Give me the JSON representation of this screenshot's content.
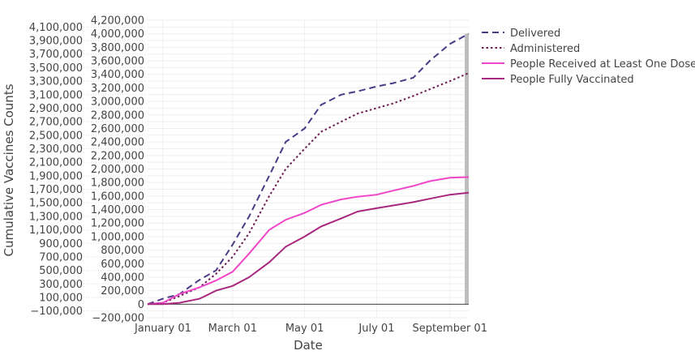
{
  "chart_data": {
    "type": "line",
    "title": "",
    "xlabel": "Date",
    "ylabel": "Cumulative Vaccines Counts",
    "ylim": [
      -200000,
      4200000
    ],
    "ytick_step": 100000,
    "xlim": [
      "2020-12-19",
      "2021-09-17"
    ],
    "xticks": [
      {
        "date": "2021-01-01",
        "label": "January 01"
      },
      {
        "date": "2021-03-01",
        "label": "March 01"
      },
      {
        "date": "2021-05-01",
        "label": "May 01"
      },
      {
        "date": "2021-07-01",
        "label": "July 01"
      },
      {
        "date": "2021-09-01",
        "label": "September 01"
      }
    ],
    "grid": true,
    "legend_position": "top-right",
    "highlight_band": [
      "2021-09-15",
      "2021-09-17"
    ],
    "x": [
      "2020-12-19",
      "2021-01-01",
      "2021-01-15",
      "2021-02-01",
      "2021-02-15",
      "2021-03-01",
      "2021-03-15",
      "2021-04-01",
      "2021-04-15",
      "2021-05-01",
      "2021-05-15",
      "2021-06-01",
      "2021-06-15",
      "2021-07-01",
      "2021-07-15",
      "2021-08-01",
      "2021-08-15",
      "2021-09-01",
      "2021-09-17"
    ],
    "series": [
      {
        "name": "Delivered",
        "color": "#4b3a86",
        "dash": "dash",
        "values": [
          0,
          80000,
          150000,
          360000,
          500000,
          880000,
          1300000,
          1900000,
          2400000,
          2600000,
          2950000,
          3100000,
          3150000,
          3220000,
          3270000,
          3350000,
          3600000,
          3850000,
          4000000
        ]
      },
      {
        "name": "Administered",
        "color": "#6b1d52",
        "dash": "dot",
        "values": [
          0,
          20000,
          120000,
          250000,
          450000,
          700000,
          1050000,
          1600000,
          2000000,
          2300000,
          2550000,
          2700000,
          2820000,
          2900000,
          2970000,
          3080000,
          3180000,
          3300000,
          3420000
        ]
      },
      {
        "name": "People Received at Least One Dose",
        "color": "#f046c8",
        "dash": "solid",
        "values": [
          0,
          20000,
          150000,
          250000,
          350000,
          480000,
          750000,
          1100000,
          1250000,
          1350000,
          1470000,
          1550000,
          1590000,
          1620000,
          1680000,
          1750000,
          1820000,
          1870000,
          1880000
        ]
      },
      {
        "name": "People Fully Vaccinated",
        "color": "#a8287f",
        "dash": "solid",
        "values": [
          0,
          0,
          20000,
          80000,
          200000,
          270000,
          400000,
          620000,
          850000,
          1000000,
          1150000,
          1270000,
          1370000,
          1420000,
          1460000,
          1510000,
          1560000,
          1620000,
          1650000
        ]
      }
    ]
  }
}
